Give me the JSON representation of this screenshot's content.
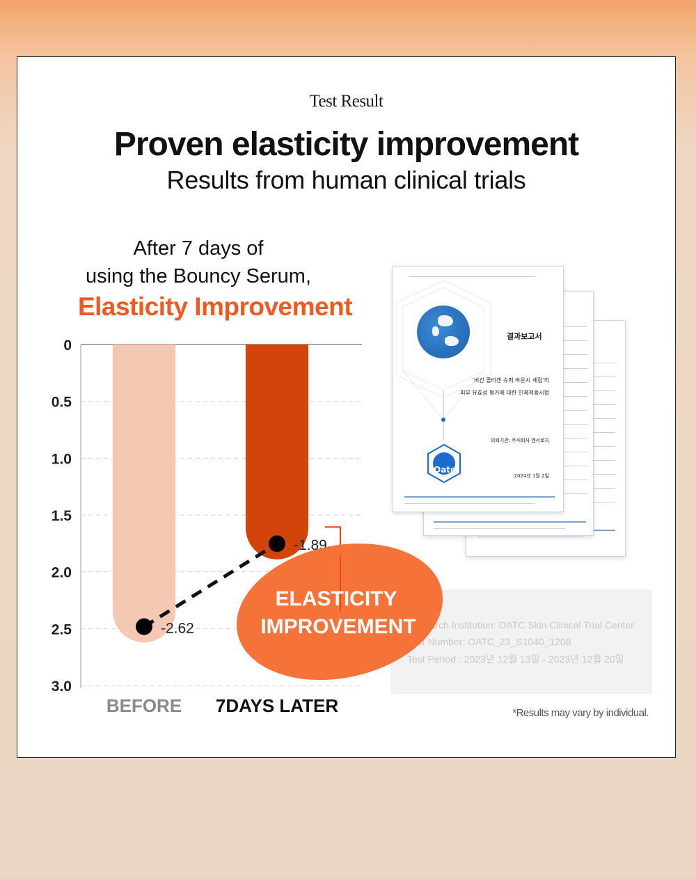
{
  "card": {
    "eyebrow": "Test Result",
    "headline": "Proven elasticity improvement",
    "subhead": "Results from human clinical trials",
    "intro_line1": "After 7 days of",
    "intro_line2": "using the Bouncy Serum,",
    "accent_title": "Elasticity Improvement",
    "footnote": "*Results may vary by individual."
  },
  "colors": {
    "accent": "#f05a1e",
    "before_bar": "#f5c8b4",
    "after_bar": "#d2440a",
    "callout": "#f57238",
    "bracket": "#e5441a"
  },
  "chart_data": {
    "type": "bar",
    "orientation": "downward",
    "categories": [
      "BEFORE",
      "7DAYS LATER"
    ],
    "values": [
      2.62,
      1.89
    ],
    "data_labels": [
      "-2.62",
      "-1.89"
    ],
    "ylim": [
      0,
      3.0
    ],
    "yticks": [
      "0",
      "0.5",
      "1.0",
      "1.5",
      "2.0",
      "2.5",
      "3.0"
    ],
    "ytick_values": [
      0,
      0.5,
      1.0,
      1.5,
      2.0,
      2.5,
      3.0
    ],
    "grid": true,
    "callout_line1": "ELASTICITY",
    "callout_line2": "IMPROVEMENT"
  },
  "report": {
    "title": "결과보고서",
    "subject_line1": "'비건 콜라겐 슈퍼 바운시 세럼'의",
    "subject_line2": "피부 유효성 평가에 대한 인체적용시험",
    "client": "의뢰기관: 주식회사 엔서로지",
    "date": "2024년 1월 2일",
    "logo_text": "Oatc"
  },
  "info": {
    "institution": "Research Institution: OATC Skin Clinical Trial Center",
    "test_number": "Test Number: OATC_23_S1040_1208",
    "test_period": "Test Period : 2023년 12월 13일 - 2023년 12월 20일"
  }
}
